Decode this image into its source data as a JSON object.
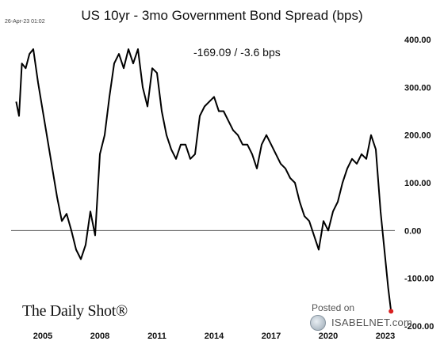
{
  "timestamp": "26-Apr-23 01:02",
  "brand": "The Daily Shot®",
  "watermark": {
    "line1": "Posted on",
    "line2": "ISABELNET.com",
    "icon": "globe-icon"
  },
  "chart_data": {
    "type": "line",
    "title": "US 10yr - 3mo Government Bond Spread (bps)",
    "readout": "-169.09  /  -3.6 bps",
    "xlabel": "",
    "ylabel": "",
    "xlim": [
      2003.5,
      2023.5
    ],
    "ylim": [
      -200,
      400
    ],
    "grid": false,
    "zero_line": true,
    "y_axis_side": "right",
    "line_color": "#000000",
    "last_point_color": "#d92020",
    "x_ticks": [
      2005,
      2008,
      2011,
      2014,
      2017,
      2020,
      2023
    ],
    "x_tick_labels": [
      "2005",
      "2008",
      "2011",
      "2014",
      "2017",
      "2020",
      "2023"
    ],
    "y_ticks": [
      400,
      300,
      200,
      100,
      0,
      -100,
      -200
    ],
    "y_tick_labels": [
      "400.00",
      "300.00",
      "200.00",
      "100.00",
      "0.00",
      "-100.00",
      "-200.00"
    ],
    "series": [
      {
        "x": [
          2003.6,
          2003.75,
          2003.9,
          2004.1,
          2004.3,
          2004.5,
          2004.75,
          2005.0,
          2005.25,
          2005.5,
          2005.75,
          2006.0,
          2006.25,
          2006.5,
          2006.75,
          2007.0,
          2007.25,
          2007.5,
          2007.75,
          2008.0,
          2008.25,
          2008.5,
          2008.75,
          2009.0,
          2009.25,
          2009.5,
          2009.75,
          2010.0,
          2010.25,
          2010.5,
          2010.75,
          2011.0,
          2011.25,
          2011.5,
          2011.75,
          2012.0,
          2012.25,
          2012.5,
          2012.75,
          2013.0,
          2013.25,
          2013.5,
          2013.75,
          2014.0,
          2014.25,
          2014.5,
          2014.75,
          2015.0,
          2015.25,
          2015.5,
          2015.75,
          2016.0,
          2016.25,
          2016.5,
          2016.75,
          2017.0,
          2017.25,
          2017.5,
          2017.75,
          2018.0,
          2018.25,
          2018.5,
          2018.75,
          2019.0,
          2019.25,
          2019.5,
          2019.75,
          2020.0,
          2020.25,
          2020.5,
          2020.75,
          2021.0,
          2021.25,
          2021.5,
          2021.75,
          2022.0,
          2022.25,
          2022.5,
          2022.75,
          2023.0,
          2023.15,
          2023.3
        ],
        "y": [
          270,
          240,
          350,
          340,
          370,
          380,
          310,
          250,
          190,
          130,
          70,
          20,
          35,
          0,
          -40,
          -60,
          -30,
          40,
          -10,
          160,
          200,
          280,
          350,
          370,
          340,
          380,
          350,
          380,
          300,
          260,
          340,
          330,
          250,
          200,
          170,
          150,
          180,
          180,
          150,
          160,
          240,
          260,
          270,
          280,
          250,
          250,
          230,
          210,
          200,
          180,
          180,
          160,
          130,
          180,
          200,
          180,
          160,
          140,
          130,
          110,
          100,
          60,
          30,
          20,
          -10,
          -40,
          20,
          0,
          40,
          60,
          100,
          130,
          150,
          140,
          160,
          150,
          200,
          170,
          40,
          -60,
          -120,
          -169.09
        ]
      }
    ]
  }
}
